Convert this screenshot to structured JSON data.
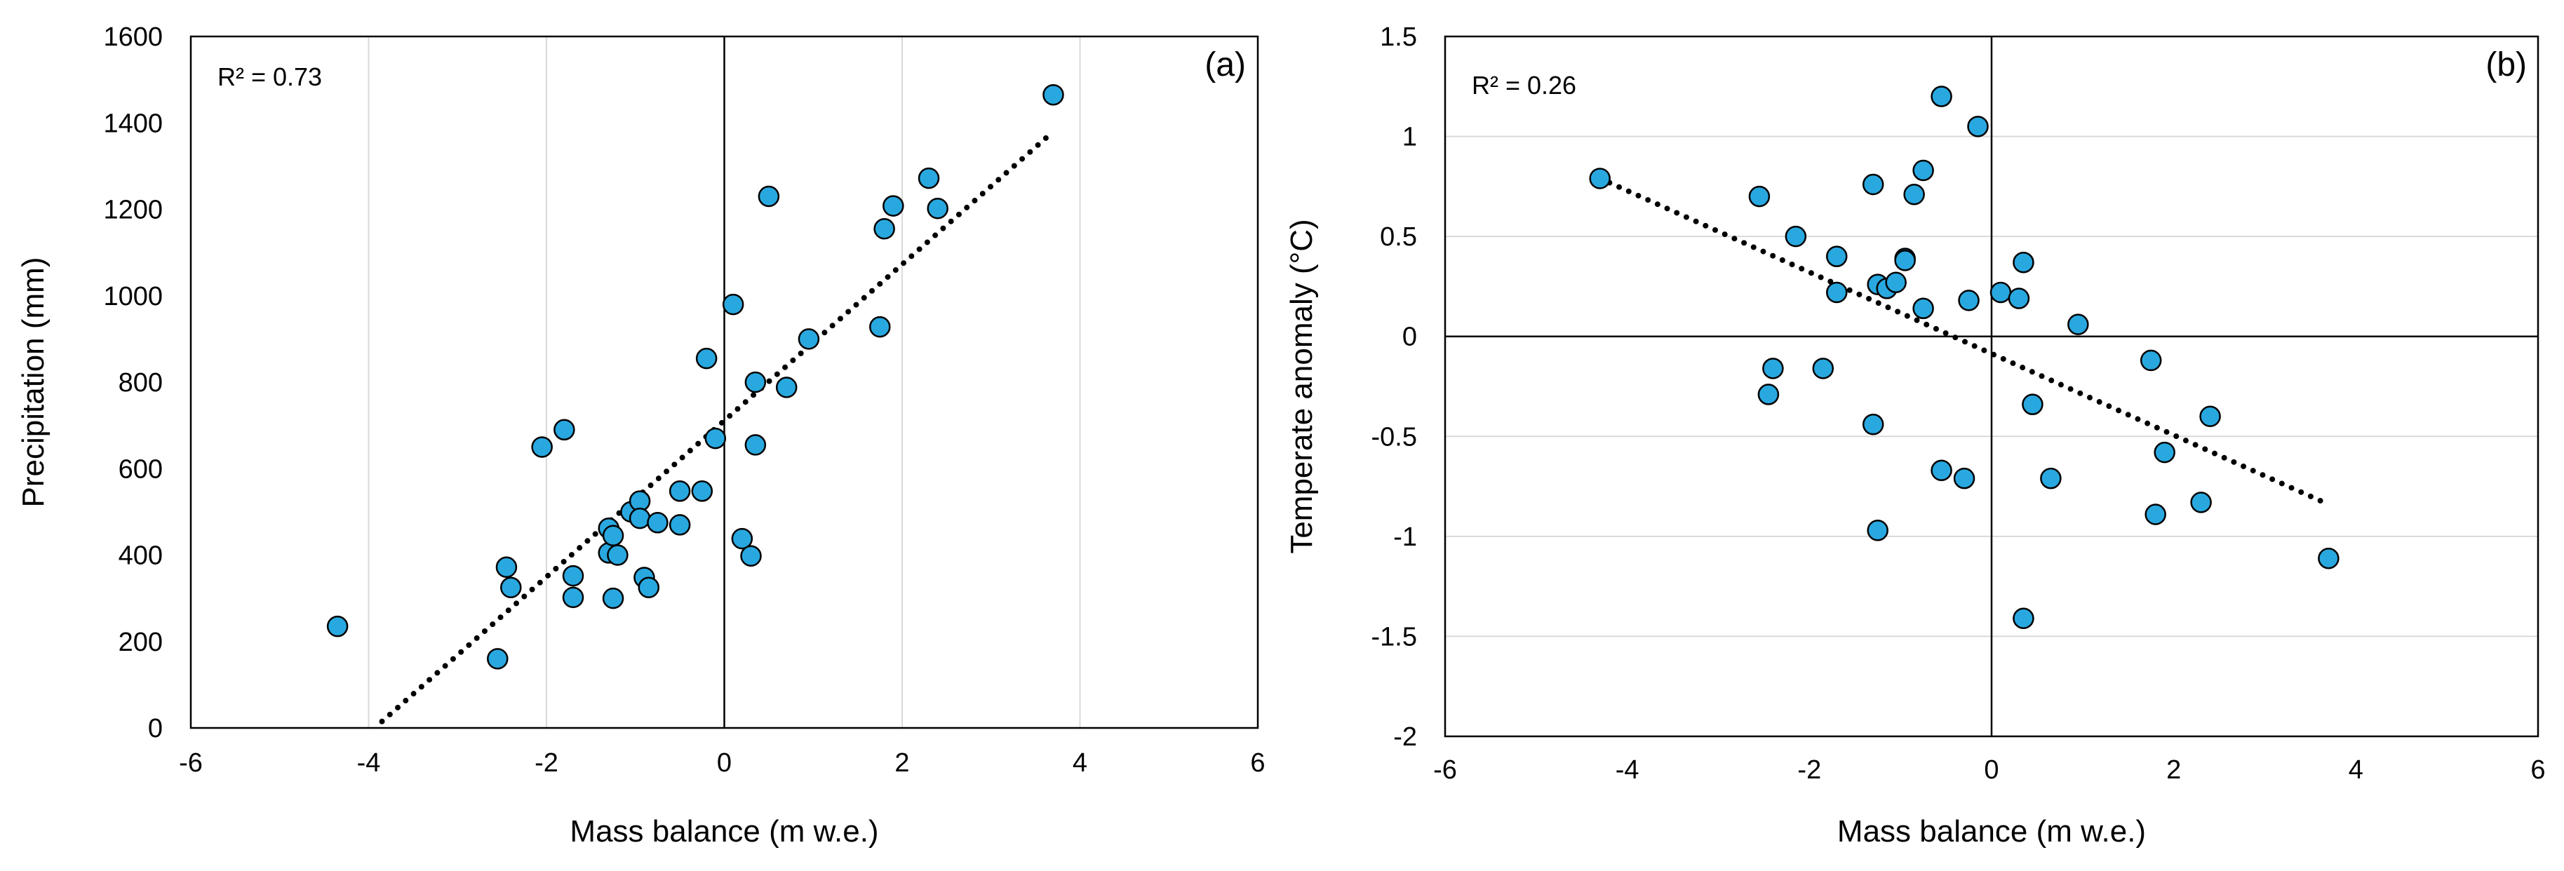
{
  "chart_data": [
    {
      "type": "scatter",
      "panel_label": "(a)",
      "annotation": "R² = 0.73",
      "xlabel": "Mass balance (m w.e.)",
      "ylabel": "Precipitation (mm)",
      "xlim": [
        -6,
        6
      ],
      "ylim": [
        0,
        1600
      ],
      "xticks": [
        -6,
        -4,
        -2,
        0,
        2,
        4,
        6
      ],
      "yticks": [
        0,
        200,
        400,
        600,
        800,
        1000,
        1200,
        1400,
        1600
      ],
      "grid": "vertical",
      "marker_color": "#29a8e0",
      "trendline": {
        "x": [
          -3.85,
          3.7
        ],
        "y": [
          15,
          1380
        ],
        "style": "dotted"
      },
      "points": [
        {
          "x": -4.35,
          "y": 235
        },
        {
          "x": -2.55,
          "y": 160
        },
        {
          "x": -2.45,
          "y": 372
        },
        {
          "x": -2.4,
          "y": 325
        },
        {
          "x": -2.05,
          "y": 650
        },
        {
          "x": -1.8,
          "y": 690
        },
        {
          "x": -1.7,
          "y": 352
        },
        {
          "x": -1.7,
          "y": 302
        },
        {
          "x": -1.3,
          "y": 462
        },
        {
          "x": -1.3,
          "y": 405
        },
        {
          "x": -1.25,
          "y": 445
        },
        {
          "x": -1.25,
          "y": 300
        },
        {
          "x": -1.2,
          "y": 400
        },
        {
          "x": -1.05,
          "y": 500
        },
        {
          "x": -0.95,
          "y": 525
        },
        {
          "x": -0.95,
          "y": 485
        },
        {
          "x": -0.9,
          "y": 348
        },
        {
          "x": -0.85,
          "y": 325
        },
        {
          "x": -0.75,
          "y": 475
        },
        {
          "x": -0.5,
          "y": 548
        },
        {
          "x": -0.5,
          "y": 470
        },
        {
          "x": -0.25,
          "y": 548
        },
        {
          "x": -0.2,
          "y": 855
        },
        {
          "x": -0.1,
          "y": 670
        },
        {
          "x": 0.1,
          "y": 980
        },
        {
          "x": 0.2,
          "y": 438
        },
        {
          "x": 0.3,
          "y": 398
        },
        {
          "x": 0.35,
          "y": 800
        },
        {
          "x": 0.35,
          "y": 655
        },
        {
          "x": 0.5,
          "y": 1230
        },
        {
          "x": 0.7,
          "y": 788
        },
        {
          "x": 0.95,
          "y": 900
        },
        {
          "x": 1.75,
          "y": 928
        },
        {
          "x": 1.8,
          "y": 1155
        },
        {
          "x": 1.9,
          "y": 1208
        },
        {
          "x": 2.3,
          "y": 1272
        },
        {
          "x": 2.4,
          "y": 1202
        },
        {
          "x": 3.7,
          "y": 1465
        }
      ]
    },
    {
      "type": "scatter",
      "panel_label": "(b)",
      "annotation": "R² = 0.26",
      "xlabel": "Mass balance (m w.e.)",
      "ylabel": "Temperate anomaly (°C)",
      "xlim": [
        -6,
        6
      ],
      "ylim": [
        -2,
        1.5
      ],
      "xticks": [
        -6,
        -4,
        -2,
        0,
        2,
        4,
        6
      ],
      "yticks": [
        -2,
        -1.5,
        -1,
        -0.5,
        0,
        0.5,
        1,
        1.5
      ],
      "grid": "horizontal",
      "marker_color": "#29a8e0",
      "trendline": {
        "x": [
          -4.3,
          3.7
        ],
        "y": [
          0.79,
          -0.84
        ],
        "style": "dotted"
      },
      "points": [
        {
          "x": -4.3,
          "y": 0.79
        },
        {
          "x": -2.55,
          "y": 0.7
        },
        {
          "x": -2.45,
          "y": -0.29
        },
        {
          "x": -2.4,
          "y": -0.16
        },
        {
          "x": -2.15,
          "y": 0.5
        },
        {
          "x": -1.85,
          "y": -0.16
        },
        {
          "x": -1.7,
          "y": 0.4
        },
        {
          "x": -1.7,
          "y": 0.22
        },
        {
          "x": -1.3,
          "y": 0.76
        },
        {
          "x": -1.3,
          "y": -0.44
        },
        {
          "x": -1.25,
          "y": 0.26
        },
        {
          "x": -1.25,
          "y": -0.97
        },
        {
          "x": -1.15,
          "y": 0.24
        },
        {
          "x": -1.05,
          "y": 0.27
        },
        {
          "x": -0.95,
          "y": 0.39
        },
        {
          "x": -0.95,
          "y": 0.38
        },
        {
          "x": -0.85,
          "y": 0.71
        },
        {
          "x": -0.75,
          "y": 0.83
        },
        {
          "x": -0.75,
          "y": 0.14
        },
        {
          "x": -0.55,
          "y": 1.2
        },
        {
          "x": -0.55,
          "y": -0.67
        },
        {
          "x": -0.3,
          "y": -0.71
        },
        {
          "x": -0.25,
          "y": 0.18
        },
        {
          "x": -0.15,
          "y": 1.05
        },
        {
          "x": 0.1,
          "y": 0.22
        },
        {
          "x": 0.3,
          "y": 0.19
        },
        {
          "x": 0.35,
          "y": 0.37
        },
        {
          "x": 0.35,
          "y": -1.41
        },
        {
          "x": 0.45,
          "y": -0.34
        },
        {
          "x": 0.65,
          "y": -0.71
        },
        {
          "x": 0.95,
          "y": 0.06
        },
        {
          "x": 1.75,
          "y": -0.12
        },
        {
          "x": 1.8,
          "y": -0.89
        },
        {
          "x": 1.9,
          "y": -0.58
        },
        {
          "x": 2.3,
          "y": -0.83
        },
        {
          "x": 2.4,
          "y": -0.4
        },
        {
          "x": 3.7,
          "y": -1.11
        }
      ]
    }
  ]
}
